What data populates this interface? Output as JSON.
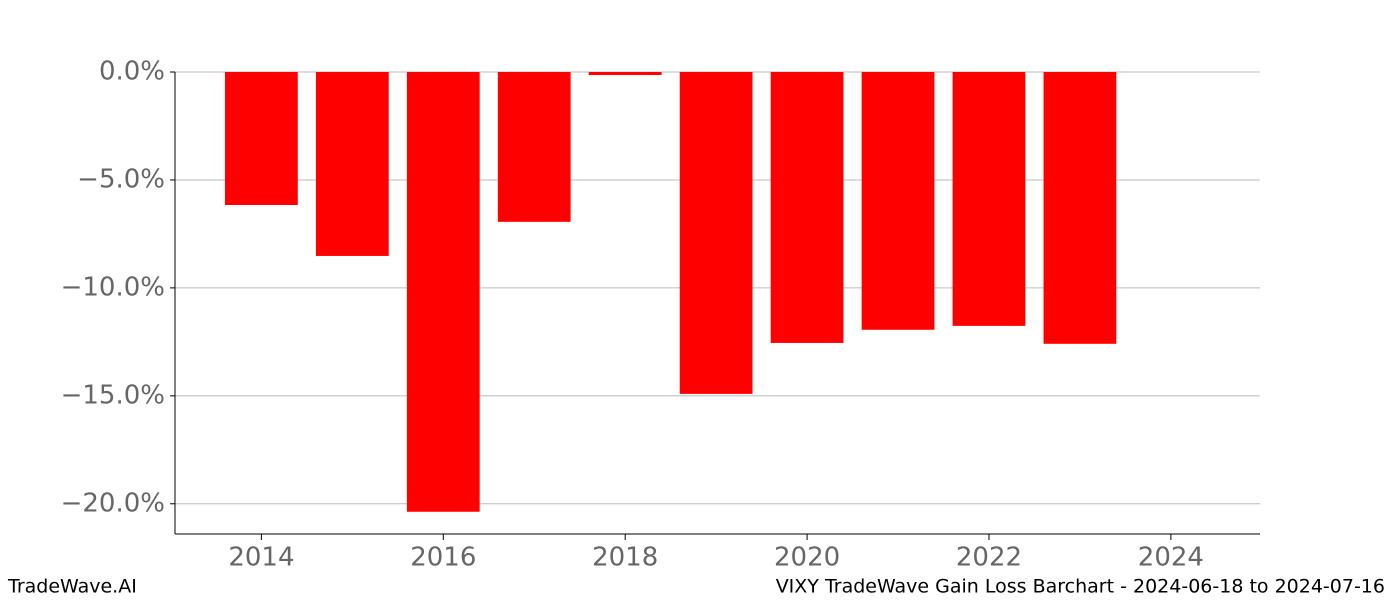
{
  "chart_data": {
    "type": "bar",
    "title": "VIXY TradeWave Gain Loss Barchart - 2024-06-18 to 2024-07-16",
    "source": "TradeWave.AI",
    "x": [
      2014,
      2015,
      2016,
      2017,
      2018,
      2019,
      2020,
      2021,
      2022,
      2023
    ],
    "values": [
      -6.16,
      -8.52,
      -20.37,
      -6.94,
      -0.14,
      -14.91,
      -12.55,
      -11.94,
      -11.76,
      -12.59
    ],
    "color": "#ff0000",
    "xlim": [
      2013.05,
      2024.98
    ],
    "xticks": [
      2014,
      2016,
      2018,
      2020,
      2022,
      2024
    ],
    "ylim": [
      -21.4,
      0
    ],
    "yticks": [
      {
        "value": 0,
        "label": "0.0%"
      },
      {
        "value": -5,
        "label": "−5.0%"
      },
      {
        "value": -10,
        "label": "−10.0%"
      },
      {
        "value": -15,
        "label": "−15.0%"
      },
      {
        "value": -20,
        "label": "−20.0%"
      }
    ],
    "grid": true
  }
}
